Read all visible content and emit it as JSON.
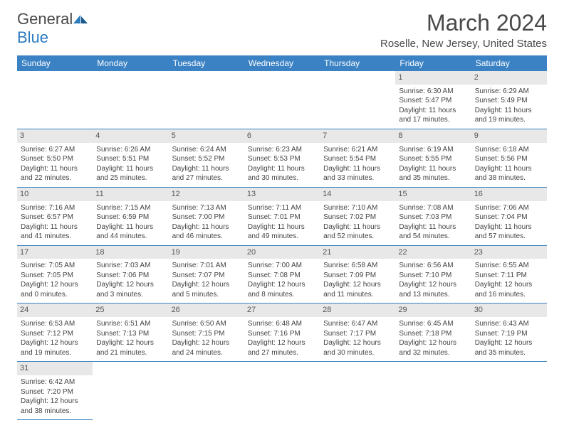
{
  "logo": {
    "text1": "General",
    "text2": "Blue"
  },
  "title": "March 2024",
  "location": "Roselle, New Jersey, United States",
  "colors": {
    "header_bg": "#3b82c4",
    "header_text": "#ffffff",
    "border": "#3b82c4",
    "daynum_bg": "#e8e8e8",
    "text": "#444444",
    "logo_gray": "#4a4a4a",
    "logo_blue": "#2b7bbf"
  },
  "fonts": {
    "title_size": 32,
    "location_size": 15,
    "dayname_size": 12,
    "cell_size": 10
  },
  "day_names": [
    "Sunday",
    "Monday",
    "Tuesday",
    "Wednesday",
    "Thursday",
    "Friday",
    "Saturday"
  ],
  "weeks": [
    [
      null,
      null,
      null,
      null,
      null,
      {
        "n": "1",
        "sr": "Sunrise: 6:30 AM",
        "ss": "Sunset: 5:47 PM",
        "d1": "Daylight: 11 hours",
        "d2": "and 17 minutes."
      },
      {
        "n": "2",
        "sr": "Sunrise: 6:29 AM",
        "ss": "Sunset: 5:49 PM",
        "d1": "Daylight: 11 hours",
        "d2": "and 19 minutes."
      }
    ],
    [
      {
        "n": "3",
        "sr": "Sunrise: 6:27 AM",
        "ss": "Sunset: 5:50 PM",
        "d1": "Daylight: 11 hours",
        "d2": "and 22 minutes."
      },
      {
        "n": "4",
        "sr": "Sunrise: 6:26 AM",
        "ss": "Sunset: 5:51 PM",
        "d1": "Daylight: 11 hours",
        "d2": "and 25 minutes."
      },
      {
        "n": "5",
        "sr": "Sunrise: 6:24 AM",
        "ss": "Sunset: 5:52 PM",
        "d1": "Daylight: 11 hours",
        "d2": "and 27 minutes."
      },
      {
        "n": "6",
        "sr": "Sunrise: 6:23 AM",
        "ss": "Sunset: 5:53 PM",
        "d1": "Daylight: 11 hours",
        "d2": "and 30 minutes."
      },
      {
        "n": "7",
        "sr": "Sunrise: 6:21 AM",
        "ss": "Sunset: 5:54 PM",
        "d1": "Daylight: 11 hours",
        "d2": "and 33 minutes."
      },
      {
        "n": "8",
        "sr": "Sunrise: 6:19 AM",
        "ss": "Sunset: 5:55 PM",
        "d1": "Daylight: 11 hours",
        "d2": "and 35 minutes."
      },
      {
        "n": "9",
        "sr": "Sunrise: 6:18 AM",
        "ss": "Sunset: 5:56 PM",
        "d1": "Daylight: 11 hours",
        "d2": "and 38 minutes."
      }
    ],
    [
      {
        "n": "10",
        "sr": "Sunrise: 7:16 AM",
        "ss": "Sunset: 6:57 PM",
        "d1": "Daylight: 11 hours",
        "d2": "and 41 minutes."
      },
      {
        "n": "11",
        "sr": "Sunrise: 7:15 AM",
        "ss": "Sunset: 6:59 PM",
        "d1": "Daylight: 11 hours",
        "d2": "and 44 minutes."
      },
      {
        "n": "12",
        "sr": "Sunrise: 7:13 AM",
        "ss": "Sunset: 7:00 PM",
        "d1": "Daylight: 11 hours",
        "d2": "and 46 minutes."
      },
      {
        "n": "13",
        "sr": "Sunrise: 7:11 AM",
        "ss": "Sunset: 7:01 PM",
        "d1": "Daylight: 11 hours",
        "d2": "and 49 minutes."
      },
      {
        "n": "14",
        "sr": "Sunrise: 7:10 AM",
        "ss": "Sunset: 7:02 PM",
        "d1": "Daylight: 11 hours",
        "d2": "and 52 minutes."
      },
      {
        "n": "15",
        "sr": "Sunrise: 7:08 AM",
        "ss": "Sunset: 7:03 PM",
        "d1": "Daylight: 11 hours",
        "d2": "and 54 minutes."
      },
      {
        "n": "16",
        "sr": "Sunrise: 7:06 AM",
        "ss": "Sunset: 7:04 PM",
        "d1": "Daylight: 11 hours",
        "d2": "and 57 minutes."
      }
    ],
    [
      {
        "n": "17",
        "sr": "Sunrise: 7:05 AM",
        "ss": "Sunset: 7:05 PM",
        "d1": "Daylight: 12 hours",
        "d2": "and 0 minutes."
      },
      {
        "n": "18",
        "sr": "Sunrise: 7:03 AM",
        "ss": "Sunset: 7:06 PM",
        "d1": "Daylight: 12 hours",
        "d2": "and 3 minutes."
      },
      {
        "n": "19",
        "sr": "Sunrise: 7:01 AM",
        "ss": "Sunset: 7:07 PM",
        "d1": "Daylight: 12 hours",
        "d2": "and 5 minutes."
      },
      {
        "n": "20",
        "sr": "Sunrise: 7:00 AM",
        "ss": "Sunset: 7:08 PM",
        "d1": "Daylight: 12 hours",
        "d2": "and 8 minutes."
      },
      {
        "n": "21",
        "sr": "Sunrise: 6:58 AM",
        "ss": "Sunset: 7:09 PM",
        "d1": "Daylight: 12 hours",
        "d2": "and 11 minutes."
      },
      {
        "n": "22",
        "sr": "Sunrise: 6:56 AM",
        "ss": "Sunset: 7:10 PM",
        "d1": "Daylight: 12 hours",
        "d2": "and 13 minutes."
      },
      {
        "n": "23",
        "sr": "Sunrise: 6:55 AM",
        "ss": "Sunset: 7:11 PM",
        "d1": "Daylight: 12 hours",
        "d2": "and 16 minutes."
      }
    ],
    [
      {
        "n": "24",
        "sr": "Sunrise: 6:53 AM",
        "ss": "Sunset: 7:12 PM",
        "d1": "Daylight: 12 hours",
        "d2": "and 19 minutes."
      },
      {
        "n": "25",
        "sr": "Sunrise: 6:51 AM",
        "ss": "Sunset: 7:13 PM",
        "d1": "Daylight: 12 hours",
        "d2": "and 21 minutes."
      },
      {
        "n": "26",
        "sr": "Sunrise: 6:50 AM",
        "ss": "Sunset: 7:15 PM",
        "d1": "Daylight: 12 hours",
        "d2": "and 24 minutes."
      },
      {
        "n": "27",
        "sr": "Sunrise: 6:48 AM",
        "ss": "Sunset: 7:16 PM",
        "d1": "Daylight: 12 hours",
        "d2": "and 27 minutes."
      },
      {
        "n": "28",
        "sr": "Sunrise: 6:47 AM",
        "ss": "Sunset: 7:17 PM",
        "d1": "Daylight: 12 hours",
        "d2": "and 30 minutes."
      },
      {
        "n": "29",
        "sr": "Sunrise: 6:45 AM",
        "ss": "Sunset: 7:18 PM",
        "d1": "Daylight: 12 hours",
        "d2": "and 32 minutes."
      },
      {
        "n": "30",
        "sr": "Sunrise: 6:43 AM",
        "ss": "Sunset: 7:19 PM",
        "d1": "Daylight: 12 hours",
        "d2": "and 35 minutes."
      }
    ],
    [
      {
        "n": "31",
        "sr": "Sunrise: 6:42 AM",
        "ss": "Sunset: 7:20 PM",
        "d1": "Daylight: 12 hours",
        "d2": "and 38 minutes."
      },
      null,
      null,
      null,
      null,
      null,
      null
    ]
  ]
}
